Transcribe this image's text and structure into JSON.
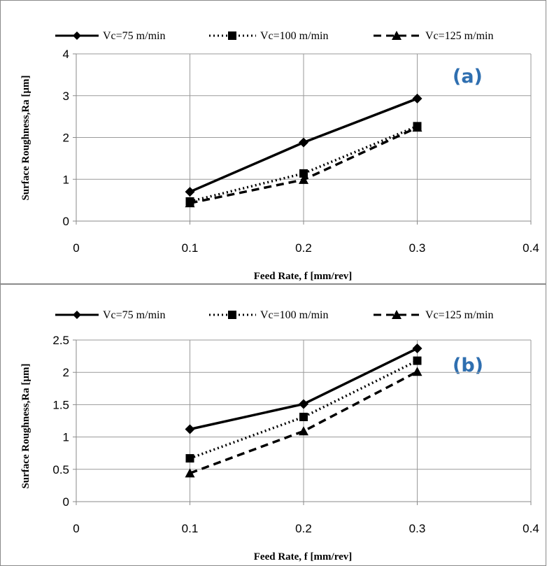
{
  "chart_data": [
    {
      "type": "line",
      "panel_label": "(a)",
      "xlabel": "Feed Rate, f [mm/rev]",
      "ylabel": "Surface Roughness,Ra [µm]",
      "xlim": [
        0,
        0.4
      ],
      "ylim": [
        0,
        4
      ],
      "x_ticks": [
        "0",
        "0.1",
        "0.2",
        "0.3",
        "0.4"
      ],
      "y_ticks": [
        "0",
        "1",
        "2",
        "3",
        "4"
      ],
      "grid": true,
      "legend_position": "top",
      "x": [
        0.1,
        0.2,
        0.3
      ],
      "series": [
        {
          "name": "Vc=75 m/min",
          "values": [
            0.7,
            1.88,
            2.93
          ],
          "marker": "diamond",
          "line_style": "solid"
        },
        {
          "name": "Vc=100 m/min",
          "values": [
            0.47,
            1.14,
            2.27
          ],
          "marker": "square",
          "line_style": "dotted"
        },
        {
          "name": "Vc=125 m/min",
          "values": [
            0.43,
            0.99,
            2.24
          ],
          "marker": "triangle",
          "line_style": "dashed"
        }
      ]
    },
    {
      "type": "line",
      "panel_label": "(b)",
      "xlabel": "Feed Rate, f [mm/rev]",
      "ylabel": "Surface Roughness,Ra [µm]",
      "xlim": [
        0,
        0.4
      ],
      "ylim": [
        0,
        2.5
      ],
      "x_ticks": [
        "0",
        "0.1",
        "0.2",
        "0.3",
        "0.4"
      ],
      "y_ticks": [
        "0",
        "0.5",
        "1",
        "1.5",
        "2",
        "2.5"
      ],
      "grid": true,
      "legend_position": "top",
      "x": [
        0.1,
        0.2,
        0.3
      ],
      "series": [
        {
          "name": "Vc=75 m/min",
          "values": [
            1.12,
            1.51,
            2.37
          ],
          "marker": "diamond",
          "line_style": "solid"
        },
        {
          "name": "Vc=100 m/min",
          "values": [
            0.67,
            1.31,
            2.18
          ],
          "marker": "square",
          "line_style": "dotted"
        },
        {
          "name": "Vc=125 m/min",
          "values": [
            0.44,
            1.09,
            2.01
          ],
          "marker": "triangle",
          "line_style": "dashed"
        }
      ]
    }
  ],
  "colors": {
    "line": "#000000",
    "grid": "#9a9a9a",
    "panel_label": "#2f6fb0"
  }
}
